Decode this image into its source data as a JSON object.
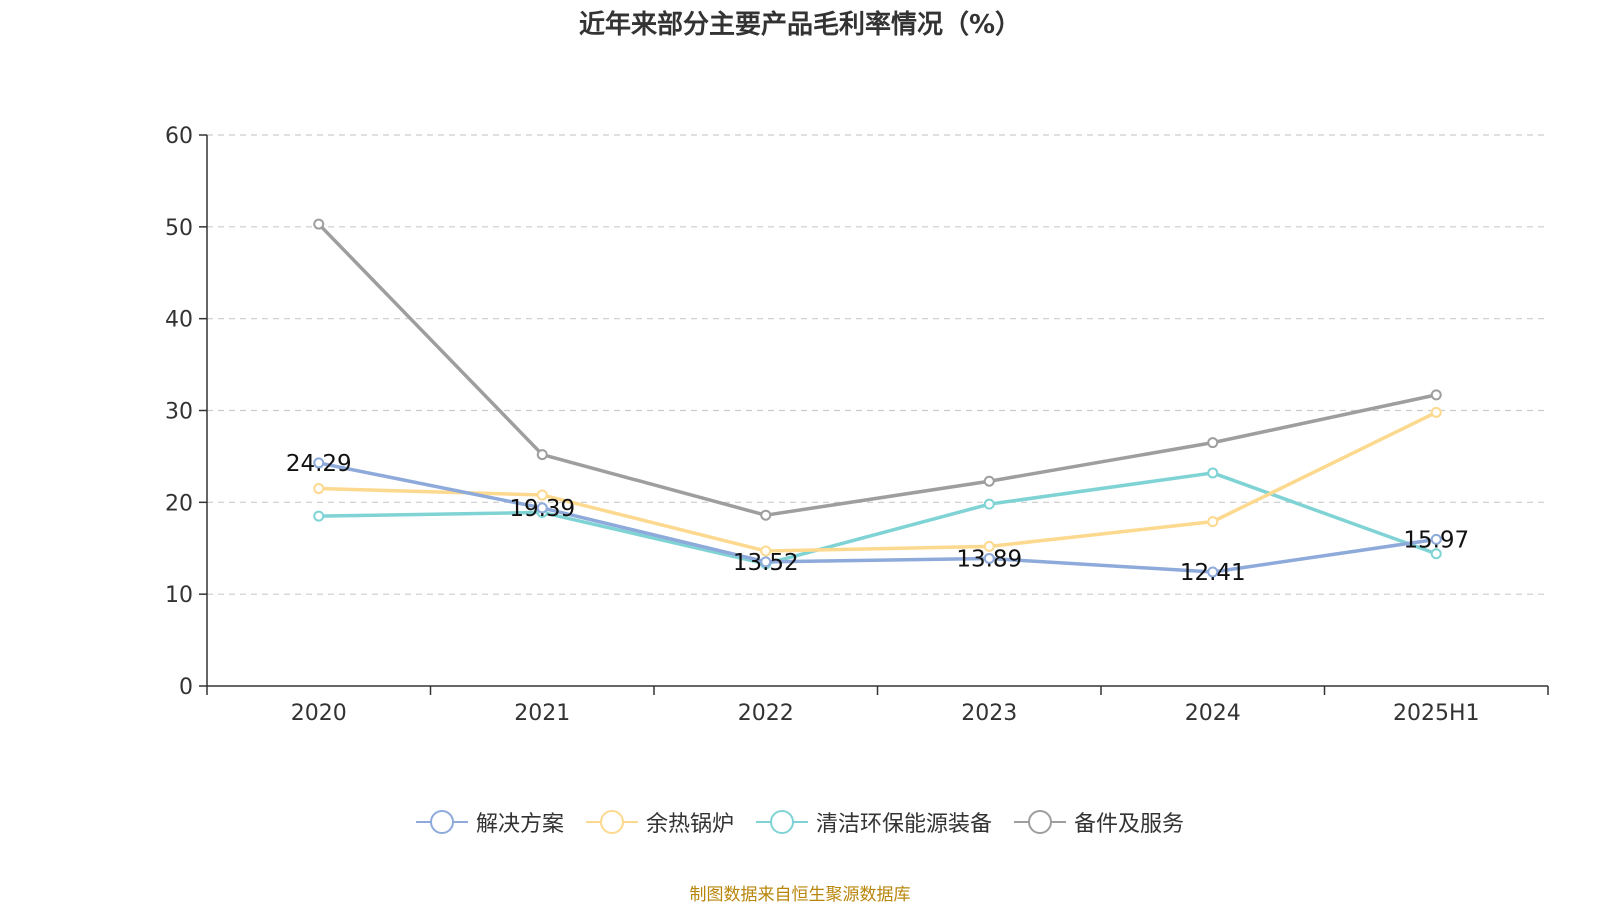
{
  "title": "近年来部分主要产品毛利率情况（%）",
  "source": "制图数据来自恒生聚源数据库",
  "chart_data": {
    "type": "line",
    "title": "近年来部分主要产品毛利率情况（%）",
    "categories": [
      "2020",
      "2021",
      "2022",
      "2023",
      "2024",
      "2025H1"
    ],
    "ylim": [
      0,
      60
    ],
    "yticks": [
      0,
      10,
      20,
      30,
      40,
      50,
      60
    ],
    "grid": true,
    "legend_position": "bottom",
    "series": [
      {
        "name": "解决方案",
        "color": "#8eaadb",
        "values": [
          24.29,
          19.39,
          13.52,
          13.89,
          12.41,
          15.97
        ],
        "labels": [
          "24.29",
          "19.39",
          "13.52",
          "13.89",
          "12.41",
          "15.97"
        ]
      },
      {
        "name": "余热锅炉",
        "color": "#fcd98e",
        "values": [
          21.5,
          20.8,
          14.7,
          15.2,
          17.9,
          29.8
        ]
      },
      {
        "name": "清洁环保能源装备",
        "color": "#7fd3d4",
        "values": [
          18.5,
          18.9,
          13.3,
          19.8,
          23.2,
          14.4
        ]
      },
      {
        "name": "备件及服务",
        "color": "#9e9e9e",
        "values": [
          50.3,
          25.2,
          18.6,
          22.3,
          26.5,
          31.7
        ]
      }
    ]
  }
}
